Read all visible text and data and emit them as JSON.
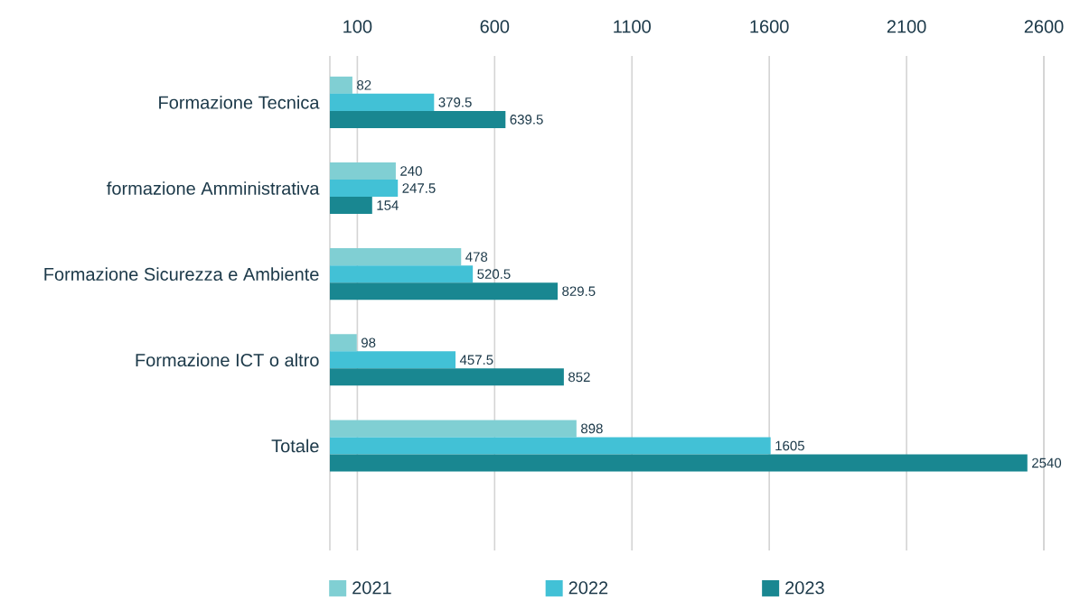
{
  "chart_data": {
    "type": "bar",
    "orientation": "horizontal",
    "categories": [
      "Formazione Tecnica",
      "formazione Amministrativa",
      "Formazione Sicurezza e Ambiente",
      "Formazione ICT o altro",
      "Totale"
    ],
    "series": [
      {
        "name": "2021",
        "color": "#80cfd3",
        "values": [
          82,
          240,
          478,
          98,
          898
        ]
      },
      {
        "name": "2022",
        "color": "#42c1d6",
        "values": [
          379.5,
          247.5,
          520.5,
          457.5,
          1605
        ]
      },
      {
        "name": "2023",
        "color": "#198791",
        "values": [
          639.5,
          154,
          829.5,
          852,
          2540
        ]
      }
    ],
    "xlim": [
      0,
      2600
    ],
    "xticks": [
      100,
      600,
      1100,
      1600,
      2100,
      2600
    ],
    "grid": "x",
    "legend": "bottom",
    "data_labels": true
  }
}
